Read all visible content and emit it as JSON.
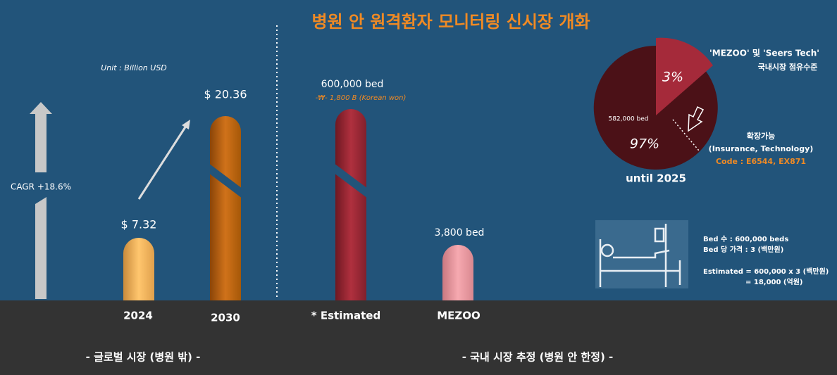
{
  "header": {
    "title": "병원 안 원격환자 모니터링 신시장 개화"
  },
  "global_market": {
    "unit": "Unit : Billion USD",
    "cagr": "CAGR +18.6%",
    "bars": [
      {
        "category": "2024",
        "label": "$ 7.32"
      },
      {
        "category": "2030",
        "label": "$ 20.36"
      }
    ],
    "footer": "- 글로벌 시장 (병원 밖) -"
  },
  "domestic_market": {
    "bars": [
      {
        "category": "* Estimated",
        "label": "600,000 bed",
        "note": "-₩- 1,800 B (Korean won)"
      },
      {
        "category": "MEZOO",
        "label": "3,800 bed"
      }
    ],
    "footer": "- 국내 시장 추정 (병원 안 한정) -"
  },
  "share_pie": {
    "slice_small": "3%",
    "slice_large": "97%",
    "large_label": "582,000 bed",
    "period": "until 2025",
    "share_title": "'MEZOO' 및 'Seers Tech'",
    "share_subtitle": "국내시장 점유수준",
    "expand_title": "확장가능",
    "expand_detail": "(Insurance, Technology)",
    "code": "Code : E6544, EX871"
  },
  "calculation": {
    "bullets": [
      "Bed 수 : 600,000 beds",
      "Bed 당 가격 : 3 (백만원)"
    ],
    "estimate": "Estimated = 600,000 x 3 (백만원)",
    "result": "= 18,000 (억원)"
  }
}
